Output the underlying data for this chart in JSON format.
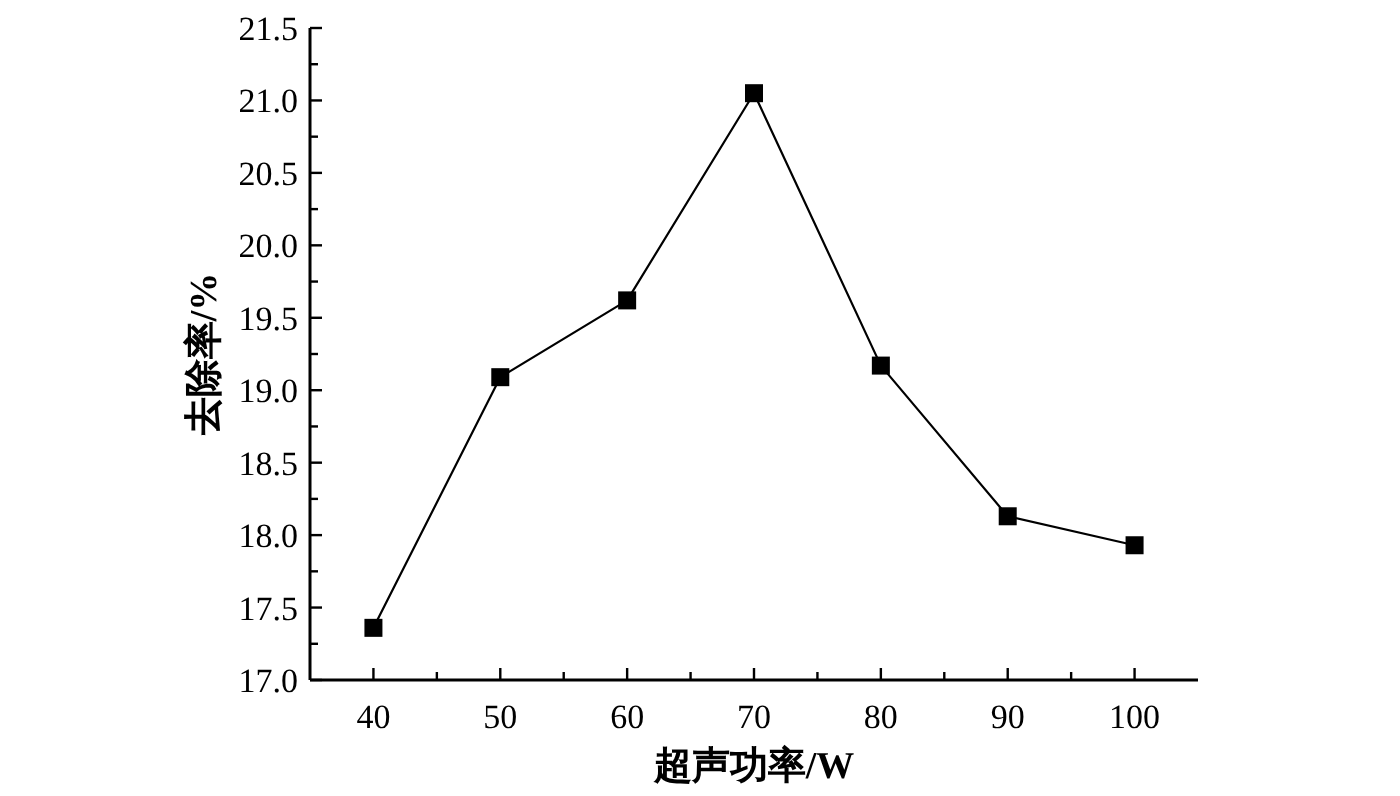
{
  "chart_data": {
    "type": "line",
    "xlabel": "超声功率/W",
    "ylabel": "去除率/%",
    "x": [
      40,
      50,
      60,
      70,
      80,
      90,
      100
    ],
    "series": [
      {
        "color": "#000000",
        "values": [
          17.36,
          19.09,
          19.62,
          21.05,
          19.17,
          18.13,
          17.93
        ]
      }
    ],
    "marker": "square",
    "line_style": "solid",
    "grid": false,
    "xlim": [
      35,
      105
    ],
    "xticks": [
      40,
      {
        "value": 45,
        "label": null
      },
      50,
      {
        "value": 55,
        "label": null
      },
      60,
      {
        "value": 65,
        "label": null
      },
      70,
      {
        "value": 75,
        "label": null
      },
      80,
      {
        "value": 85,
        "label": null
      },
      90,
      {
        "value": 95,
        "label": null
      },
      100
    ],
    "ylim": [
      17.0,
      21.5
    ],
    "yticks": [
      {
        "value": 17,
        "label": "17.0"
      },
      {
        "value": 17.25,
        "label": null
      },
      {
        "value": 17.5,
        "label": "17.5"
      },
      {
        "value": 17.75,
        "label": null
      },
      {
        "value": 18,
        "label": "18.0"
      },
      {
        "value": 18.25,
        "label": null
      },
      {
        "value": 18.5,
        "label": "18.5"
      },
      {
        "value": 18.75,
        "label": null
      },
      {
        "value": 19,
        "label": "19.0"
      },
      {
        "value": 19.25,
        "label": null
      },
      {
        "value": 19.5,
        "label": "19.5"
      },
      {
        "value": 19.75,
        "label": null
      },
      {
        "value": 20,
        "label": "20.0"
      },
      {
        "value": 20.25,
        "label": null
      },
      {
        "value": 20.5,
        "label": "20.5"
      },
      {
        "value": 20.75,
        "label": null
      },
      {
        "value": 21,
        "label": "21.0"
      },
      {
        "value": 21.25,
        "label": null
      },
      {
        "value": 21.5,
        "label": "21.5"
      }
    ]
  }
}
